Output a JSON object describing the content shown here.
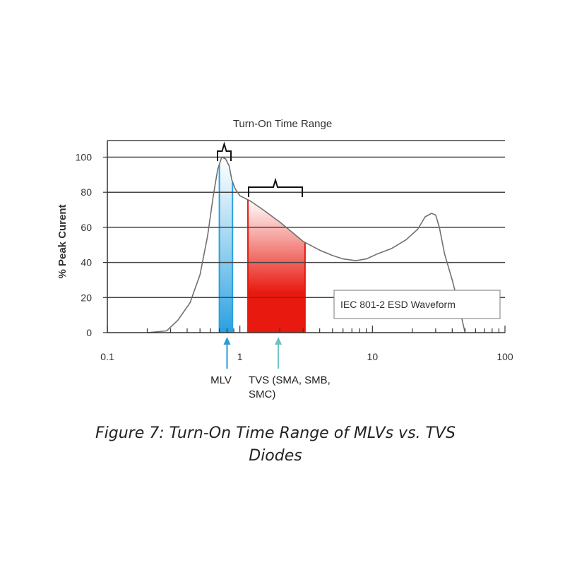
{
  "chart_data": {
    "type": "line",
    "title": "Turn-On Time Range",
    "xlabel": "",
    "ylabel": "% Peak Curent",
    "x_scale": "log",
    "xlim": [
      0.1,
      100
    ],
    "ylim": [
      0,
      110
    ],
    "x_tick_labels": [
      "0.1",
      "1",
      "10",
      "100"
    ],
    "y_ticks": [
      0,
      20,
      40,
      60,
      80,
      100
    ],
    "grid": "horizontal",
    "series": [
      {
        "name": "",
        "x": [
          0.2,
          0.28,
          0.34,
          0.42,
          0.5,
          0.57,
          0.63,
          0.68,
          0.73,
          0.78,
          0.83,
          0.87,
          0.92,
          1.0,
          1.2,
          1.5,
          2.0,
          2.5,
          3.0,
          4.0,
          5.0,
          6.0,
          7.5,
          9.0,
          11.0,
          14.0,
          18.0,
          22.0,
          25.0,
          28.0,
          30.0,
          32.0,
          35.0,
          40.0,
          45.0,
          50.0
        ],
        "y": [
          0,
          1,
          7,
          17,
          33,
          55,
          78,
          93,
          100,
          99,
          95,
          87,
          82,
          78,
          75,
          70,
          63,
          57,
          52,
          47,
          44,
          42,
          41,
          42,
          45,
          48,
          53,
          59,
          66,
          68,
          67,
          60,
          45,
          30,
          15,
          0
        ]
      }
    ],
    "ranges": [
      {
        "name": "MLV",
        "x0": 0.7,
        "x1": 0.88,
        "color": "#29a0e0",
        "arrow_x": 0.8
      },
      {
        "name": "TVS",
        "x0": 1.15,
        "x1": 3.1,
        "color": "#e8190f",
        "arrow_x": 1.95
      }
    ],
    "annotations": {
      "legend_box": "IEC 801-2 ESD Waveform",
      "mlv_label": "MLV",
      "tvs_label_line1": "TVS (SMA, SMB,",
      "tvs_label_line2": "SMC)"
    }
  },
  "caption": "Figure 7: Turn-On Time Range of MLVs vs. TVS Diodes",
  "colors": {
    "grid": "#444444",
    "curve": "#707070",
    "mlv_arrow": "#2a9ad5",
    "tvs_arrow": "#6cc3c0"
  }
}
